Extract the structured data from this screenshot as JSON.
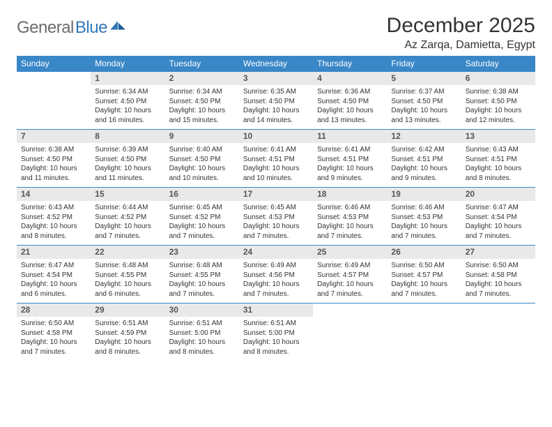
{
  "brand": {
    "name1": "General",
    "name2": "Blue"
  },
  "title": "December 2025",
  "location": "Az Zarqa, Damietta, Egypt",
  "colors": {
    "header_bg": "#3a87c7",
    "daynum_bg": "#e9e9e9",
    "rule": "#3a87c7",
    "text": "#333333",
    "logo_gray": "#6b6b6b",
    "logo_blue": "#2f78b7"
  },
  "daysOfWeek": [
    "Sunday",
    "Monday",
    "Tuesday",
    "Wednesday",
    "Thursday",
    "Friday",
    "Saturday"
  ],
  "weeks": [
    [
      {
        "n": "",
        "sunrise": "",
        "sunset": "",
        "daylight": ""
      },
      {
        "n": "1",
        "sunrise": "Sunrise: 6:34 AM",
        "sunset": "Sunset: 4:50 PM",
        "daylight": "Daylight: 10 hours and 16 minutes."
      },
      {
        "n": "2",
        "sunrise": "Sunrise: 6:34 AM",
        "sunset": "Sunset: 4:50 PM",
        "daylight": "Daylight: 10 hours and 15 minutes."
      },
      {
        "n": "3",
        "sunrise": "Sunrise: 6:35 AM",
        "sunset": "Sunset: 4:50 PM",
        "daylight": "Daylight: 10 hours and 14 minutes."
      },
      {
        "n": "4",
        "sunrise": "Sunrise: 6:36 AM",
        "sunset": "Sunset: 4:50 PM",
        "daylight": "Daylight: 10 hours and 13 minutes."
      },
      {
        "n": "5",
        "sunrise": "Sunrise: 6:37 AM",
        "sunset": "Sunset: 4:50 PM",
        "daylight": "Daylight: 10 hours and 13 minutes."
      },
      {
        "n": "6",
        "sunrise": "Sunrise: 6:38 AM",
        "sunset": "Sunset: 4:50 PM",
        "daylight": "Daylight: 10 hours and 12 minutes."
      }
    ],
    [
      {
        "n": "7",
        "sunrise": "Sunrise: 6:38 AM",
        "sunset": "Sunset: 4:50 PM",
        "daylight": "Daylight: 10 hours and 11 minutes."
      },
      {
        "n": "8",
        "sunrise": "Sunrise: 6:39 AM",
        "sunset": "Sunset: 4:50 PM",
        "daylight": "Daylight: 10 hours and 11 minutes."
      },
      {
        "n": "9",
        "sunrise": "Sunrise: 6:40 AM",
        "sunset": "Sunset: 4:50 PM",
        "daylight": "Daylight: 10 hours and 10 minutes."
      },
      {
        "n": "10",
        "sunrise": "Sunrise: 6:41 AM",
        "sunset": "Sunset: 4:51 PM",
        "daylight": "Daylight: 10 hours and 10 minutes."
      },
      {
        "n": "11",
        "sunrise": "Sunrise: 6:41 AM",
        "sunset": "Sunset: 4:51 PM",
        "daylight": "Daylight: 10 hours and 9 minutes."
      },
      {
        "n": "12",
        "sunrise": "Sunrise: 6:42 AM",
        "sunset": "Sunset: 4:51 PM",
        "daylight": "Daylight: 10 hours and 9 minutes."
      },
      {
        "n": "13",
        "sunrise": "Sunrise: 6:43 AM",
        "sunset": "Sunset: 4:51 PM",
        "daylight": "Daylight: 10 hours and 8 minutes."
      }
    ],
    [
      {
        "n": "14",
        "sunrise": "Sunrise: 6:43 AM",
        "sunset": "Sunset: 4:52 PM",
        "daylight": "Daylight: 10 hours and 8 minutes."
      },
      {
        "n": "15",
        "sunrise": "Sunrise: 6:44 AM",
        "sunset": "Sunset: 4:52 PM",
        "daylight": "Daylight: 10 hours and 7 minutes."
      },
      {
        "n": "16",
        "sunrise": "Sunrise: 6:45 AM",
        "sunset": "Sunset: 4:52 PM",
        "daylight": "Daylight: 10 hours and 7 minutes."
      },
      {
        "n": "17",
        "sunrise": "Sunrise: 6:45 AM",
        "sunset": "Sunset: 4:53 PM",
        "daylight": "Daylight: 10 hours and 7 minutes."
      },
      {
        "n": "18",
        "sunrise": "Sunrise: 6:46 AM",
        "sunset": "Sunset: 4:53 PM",
        "daylight": "Daylight: 10 hours and 7 minutes."
      },
      {
        "n": "19",
        "sunrise": "Sunrise: 6:46 AM",
        "sunset": "Sunset: 4:53 PM",
        "daylight": "Daylight: 10 hours and 7 minutes."
      },
      {
        "n": "20",
        "sunrise": "Sunrise: 6:47 AM",
        "sunset": "Sunset: 4:54 PM",
        "daylight": "Daylight: 10 hours and 7 minutes."
      }
    ],
    [
      {
        "n": "21",
        "sunrise": "Sunrise: 6:47 AM",
        "sunset": "Sunset: 4:54 PM",
        "daylight": "Daylight: 10 hours and 6 minutes."
      },
      {
        "n": "22",
        "sunrise": "Sunrise: 6:48 AM",
        "sunset": "Sunset: 4:55 PM",
        "daylight": "Daylight: 10 hours and 6 minutes."
      },
      {
        "n": "23",
        "sunrise": "Sunrise: 6:48 AM",
        "sunset": "Sunset: 4:55 PM",
        "daylight": "Daylight: 10 hours and 7 minutes."
      },
      {
        "n": "24",
        "sunrise": "Sunrise: 6:49 AM",
        "sunset": "Sunset: 4:56 PM",
        "daylight": "Daylight: 10 hours and 7 minutes."
      },
      {
        "n": "25",
        "sunrise": "Sunrise: 6:49 AM",
        "sunset": "Sunset: 4:57 PM",
        "daylight": "Daylight: 10 hours and 7 minutes."
      },
      {
        "n": "26",
        "sunrise": "Sunrise: 6:50 AM",
        "sunset": "Sunset: 4:57 PM",
        "daylight": "Daylight: 10 hours and 7 minutes."
      },
      {
        "n": "27",
        "sunrise": "Sunrise: 6:50 AM",
        "sunset": "Sunset: 4:58 PM",
        "daylight": "Daylight: 10 hours and 7 minutes."
      }
    ],
    [
      {
        "n": "28",
        "sunrise": "Sunrise: 6:50 AM",
        "sunset": "Sunset: 4:58 PM",
        "daylight": "Daylight: 10 hours and 7 minutes."
      },
      {
        "n": "29",
        "sunrise": "Sunrise: 6:51 AM",
        "sunset": "Sunset: 4:59 PM",
        "daylight": "Daylight: 10 hours and 8 minutes."
      },
      {
        "n": "30",
        "sunrise": "Sunrise: 6:51 AM",
        "sunset": "Sunset: 5:00 PM",
        "daylight": "Daylight: 10 hours and 8 minutes."
      },
      {
        "n": "31",
        "sunrise": "Sunrise: 6:51 AM",
        "sunset": "Sunset: 5:00 PM",
        "daylight": "Daylight: 10 hours and 8 minutes."
      },
      {
        "n": "",
        "sunrise": "",
        "sunset": "",
        "daylight": ""
      },
      {
        "n": "",
        "sunrise": "",
        "sunset": "",
        "daylight": ""
      },
      {
        "n": "",
        "sunrise": "",
        "sunset": "",
        "daylight": ""
      }
    ]
  ]
}
